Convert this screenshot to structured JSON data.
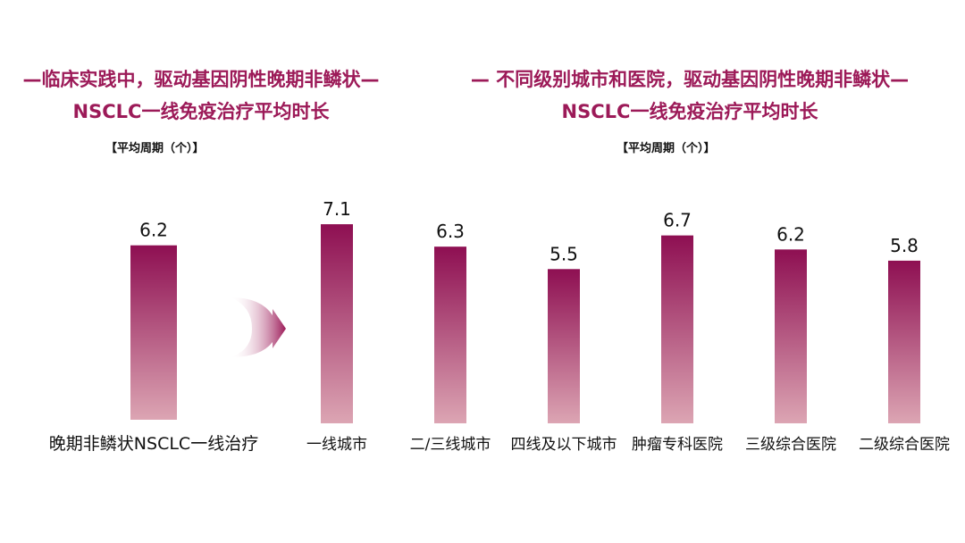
{
  "left_panel": {
    "title_line1": "—临床实践中，驱动基因阴性晚期非鳞状—",
    "title_line2": "NSCLC一线免疫治疗平均时长",
    "unit": "【平均周期（个）】"
  },
  "right_panel": {
    "title_line1": "— 不同级别城市和医院，驱动基因阴性晚期非鳞状—",
    "title_line2": "NSCLC一线免疫治疗平均时长",
    "unit": "【平均周期（个）】"
  },
  "colors": {
    "accent": "#9c1a58",
    "bar_top": "#8e0f52",
    "bar_bottom": "#dca5b3"
  },
  "icons": [
    "arrow-right-icon"
  ],
  "chart_data": [
    {
      "type": "bar",
      "title": "",
      "categories": [
        "晚期非鳞状NSCLC一线治疗"
      ],
      "values": [
        6.2
      ],
      "ylim": [
        0,
        8
      ]
    },
    {
      "type": "bar",
      "title": "",
      "categories": [
        "一线城市",
        "二/三线城市",
        "四线及以下城市",
        "肿瘤专科医院",
        "三级综合医院",
        "二级综合医院"
      ],
      "values": [
        7.1,
        6.3,
        5.5,
        6.7,
        6.2,
        5.8
      ],
      "ylim": [
        0,
        8
      ]
    }
  ]
}
